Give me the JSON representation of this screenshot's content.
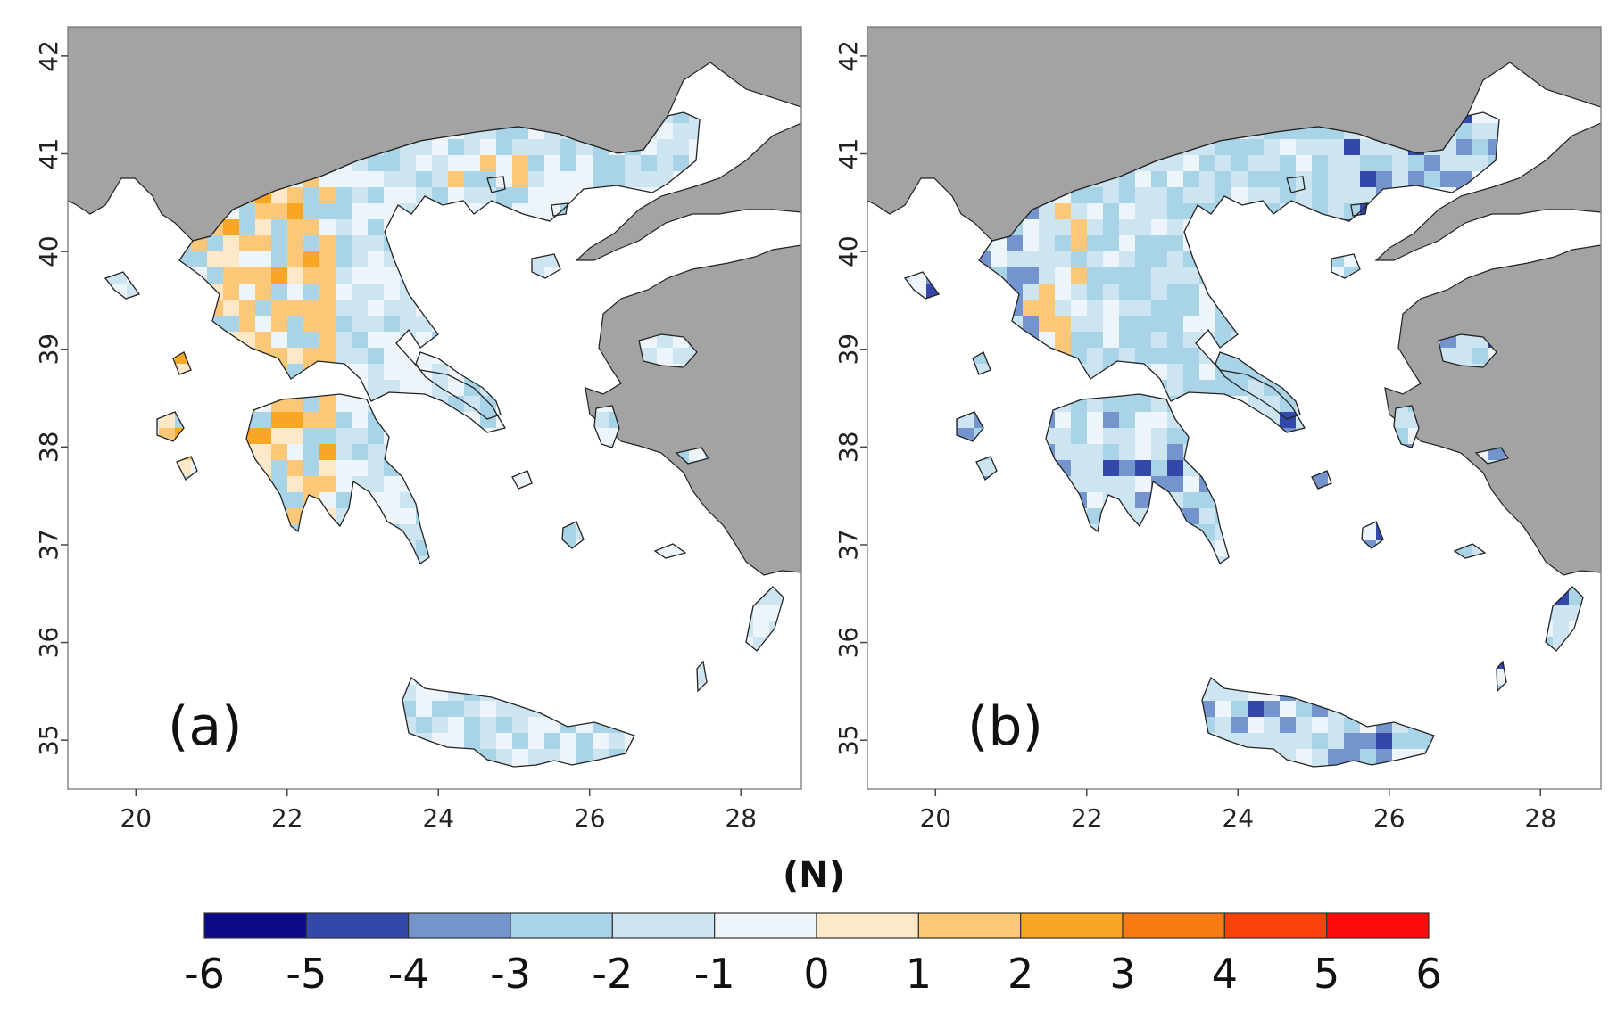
{
  "panels": [
    {
      "label": "(a)",
      "x_ticks": [
        "20",
        "22",
        "24",
        "26",
        "28"
      ],
      "y_ticks": [
        "42",
        "41",
        "40",
        "39",
        "38",
        "37",
        "36",
        "35"
      ]
    },
    {
      "label": "(b)",
      "x_ticks": [
        "20",
        "22",
        "24",
        "26",
        "28"
      ],
      "y_ticks": [
        "42",
        "41",
        "40",
        "39",
        "38",
        "37",
        "36",
        "35"
      ]
    }
  ],
  "colorbar": {
    "title": "(N)",
    "tick_labels": [
      "-6",
      "-5",
      "-4",
      "-3",
      "-2",
      "-1",
      "0",
      "1",
      "2",
      "3",
      "4",
      "5",
      "6"
    ],
    "colors": [
      "#0b0b85",
      "#3348a8",
      "#7394cc",
      "#a9d3e6",
      "#cde5f0",
      "#eef5fa",
      "#fde9c8",
      "#fcc877",
      "#f8a623",
      "#f77b12",
      "#f8420a",
      "#fd0b0b"
    ]
  },
  "colors": {
    "neighbor_land": "#a3a3a3",
    "sea": "#ffffff",
    "border": "#222222"
  }
}
